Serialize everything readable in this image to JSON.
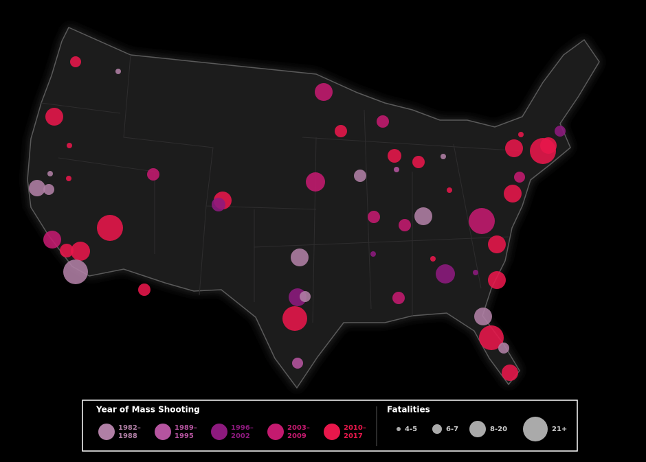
{
  "legend": {
    "year_title": "Year of Mass Shooting",
    "years": [
      [
        "1982–",
        "1988"
      ],
      [
        "1989–",
        "1995"
      ],
      [
        "1996–",
        "2002"
      ],
      [
        "2003–",
        "2009"
      ],
      [
        "2010–",
        "2017"
      ]
    ],
    "fatalities_title": "Fatalities",
    "fatalities": [
      "4-5",
      "6-7",
      "8-20",
      "21+"
    ]
  }
}
